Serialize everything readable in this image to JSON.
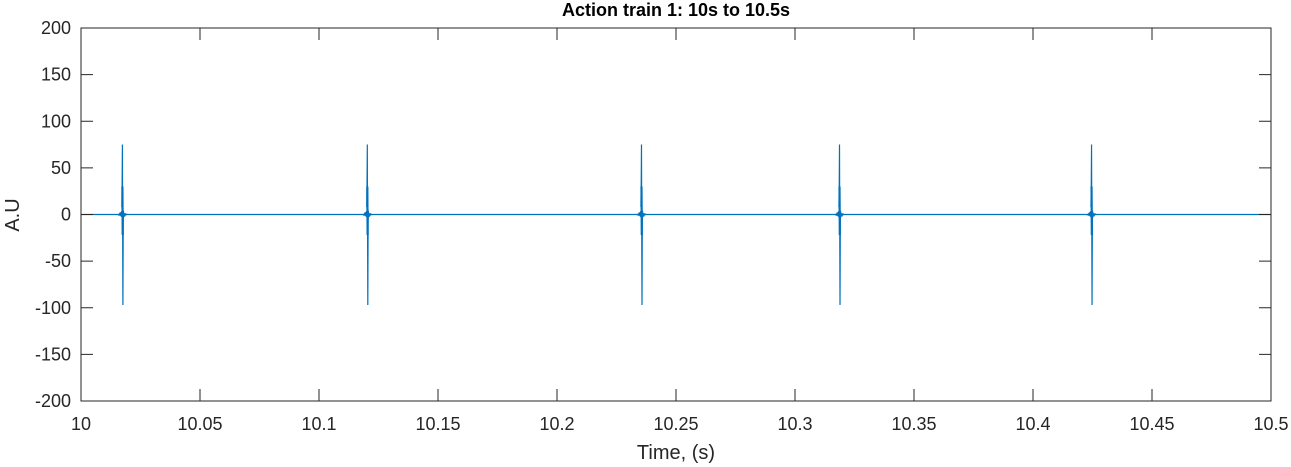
{
  "chart_data": {
    "type": "line",
    "title": "Action train 1: 10s to 10.5s",
    "xlabel": "Time, (s)",
    "ylabel": "A.U",
    "xlim": [
      10,
      10.5
    ],
    "ylim": [
      -200,
      200
    ],
    "x_ticks": [
      10,
      10.05,
      10.1,
      10.15,
      10.2,
      10.25,
      10.3,
      10.35,
      10.4,
      10.45,
      10.5
    ],
    "x_tick_labels": [
      "10",
      "10.05",
      "10.1",
      "10.15",
      "10.2",
      "10.25",
      "10.3",
      "10.35",
      "10.4",
      "10.45",
      "10.5"
    ],
    "y_ticks": [
      200,
      150,
      100,
      50,
      0,
      -50,
      -100,
      -150,
      -200
    ],
    "y_tick_labels": [
      "200",
      "150",
      "100",
      "50",
      "0",
      "-50",
      "-100",
      "-150",
      "-200"
    ],
    "grid": false,
    "box": true,
    "series": [
      {
        "color": "#0072BD",
        "baseline": 0,
        "spike_peak": 75,
        "spike_trough": -97,
        "spike_times": [
          10.0174,
          10.1203,
          10.2355,
          10.3187,
          10.4246
        ]
      }
    ]
  }
}
